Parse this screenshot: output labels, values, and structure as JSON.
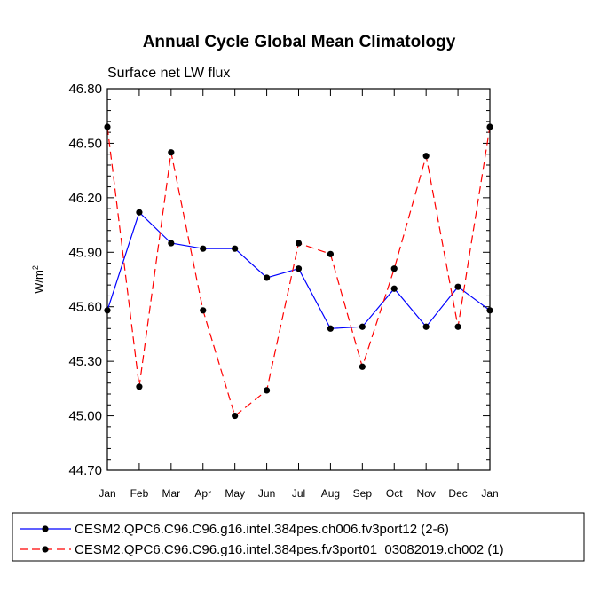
{
  "chart_data": {
    "type": "line",
    "title": "Annual Cycle Global Mean Climatology",
    "subtitle": "Surface net LW flux",
    "ylabel_base": "W/m",
    "ylabel_exp": "2",
    "xlabel": "",
    "categories": [
      "Jan",
      "Feb",
      "Mar",
      "Apr",
      "May",
      "Jun",
      "Jul",
      "Aug",
      "Sep",
      "Oct",
      "Nov",
      "Dec",
      "Jan"
    ],
    "ylim": [
      44.7,
      46.8
    ],
    "yticks": [
      "44.70",
      "45.00",
      "45.30",
      "45.60",
      "45.90",
      "46.20",
      "46.50",
      "46.80"
    ],
    "series": [
      {
        "name": "CESM2.QPC6.C96.C96.g16.intel.384pes.ch006.fv3port12 (2-6)",
        "color": "#0000ff",
        "dash": "solid",
        "values": [
          45.58,
          46.12,
          45.95,
          45.92,
          45.92,
          45.76,
          45.81,
          45.48,
          45.49,
          45.7,
          45.49,
          45.71,
          45.58
        ]
      },
      {
        "name": "CESM2.QPC6.C96.C96.g16.intel.384pes.fv3port01_03082019.ch002 (1)",
        "color": "#ff0000",
        "dash": "dashed",
        "values": [
          46.59,
          45.16,
          46.45,
          45.58,
          45.0,
          45.14,
          45.95,
          45.89,
          45.27,
          45.81,
          46.43,
          45.49,
          46.59
        ]
      }
    ]
  }
}
